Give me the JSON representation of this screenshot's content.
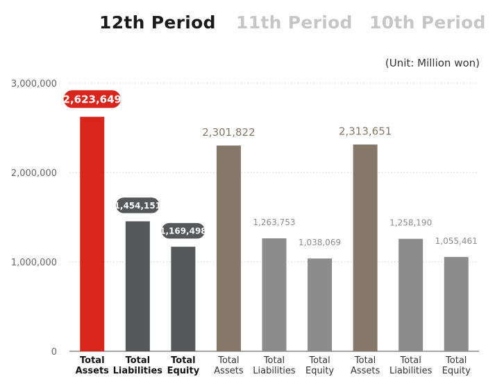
{
  "tabs": [
    {
      "label": "12th Period",
      "active": true
    },
    {
      "label": "11th Period",
      "active": false
    },
    {
      "label": "10th Period",
      "active": false
    }
  ],
  "unit_label": "(Unit: Million won)",
  "colors": {
    "assets_current": "#d9261c",
    "other_current": "#555759",
    "assets_past": "#857769",
    "other_past": "#8c8c8c",
    "label_past_assets": "#857769",
    "label_past_other": "#8c8c8c",
    "grid": "#cccccc",
    "axis_text": "#666666"
  },
  "chart_data": {
    "type": "bar",
    "title": "",
    "xlabel": "",
    "ylabel": "",
    "ylim": [
      0,
      3000000
    ],
    "yticks": [
      0,
      1000000,
      2000000,
      3000000
    ],
    "ytick_labels": [
      "0",
      "1,000,000",
      "2,000,000",
      "3,000,000"
    ],
    "grid": true,
    "bars": [
      {
        "category": [
          "Total",
          "Assets"
        ],
        "value": 2623649,
        "label": "2,623,649",
        "style": "current-assets"
      },
      {
        "category": [
          "Total",
          "Liabilities"
        ],
        "value": 1454151,
        "label": "1,454,151",
        "style": "current-other"
      },
      {
        "category": [
          "Total",
          "Equity"
        ],
        "value": 1169498,
        "label": "1,169,498",
        "style": "current-other"
      },
      {
        "category": [
          "Total",
          "Assets"
        ],
        "value": 2301822,
        "label": "2,301,822",
        "style": "past-assets"
      },
      {
        "category": [
          "Total",
          "Liabilities"
        ],
        "value": 1263753,
        "label": "1,263,753",
        "style": "past-other"
      },
      {
        "category": [
          "Total",
          "Equity"
        ],
        "value": 1038069,
        "label": "1,038,069",
        "style": "past-other"
      },
      {
        "category": [
          "Total",
          "Assets"
        ],
        "value": 2313651,
        "label": "2,313,651",
        "style": "past-assets"
      },
      {
        "category": [
          "Total",
          "Liabilities"
        ],
        "value": 1258190,
        "label": "1,258,190",
        "style": "past-other"
      },
      {
        "category": [
          "Total",
          "Equity"
        ],
        "value": 1055461,
        "label": "1,055,461",
        "style": "past-other"
      }
    ]
  }
}
